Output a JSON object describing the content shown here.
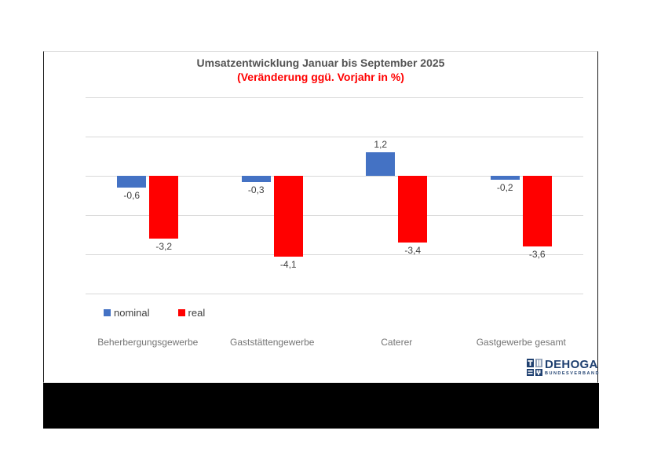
{
  "chart_data": {
    "type": "bar",
    "title": "Umsatzentwicklung Januar bis September 2025",
    "subtitle": "(Veränderung ggü. Vorjahr in %)",
    "title_color": "#545454",
    "subtitle_color": "#FF0000",
    "categories": [
      "Beherbergungsgewerbe",
      "Gaststättengewerbe",
      "Caterer",
      "Gastgewerbe gesamt"
    ],
    "series": [
      {
        "name": "nominal",
        "color": "#4472C4",
        "values": [
          -0.6,
          -0.3,
          1.2,
          -0.2
        ],
        "labels": [
          "-0,6",
          "-0,3",
          "1,2",
          "-0,2"
        ]
      },
      {
        "name": "real",
        "color": "#FF0000",
        "values": [
          -3.2,
          -4.1,
          -3.4,
          -3.6
        ],
        "labels": [
          "-3,2",
          "-4,1",
          "-3,4",
          "-3,6"
        ]
      }
    ],
    "ylim": [
      -6,
      4
    ],
    "gridline_step": 2,
    "grid": true,
    "gridline_color": "#D9D9D9",
    "legend_position": "bottom-left",
    "y_axis_tick_labels_visible": false,
    "decimal_separator": ","
  },
  "logo": {
    "name": "DEHOGA",
    "subtext": "BUNDESVERBAND",
    "color": "#1F4070"
  },
  "footer": {
    "style": "solid-black-bar"
  }
}
